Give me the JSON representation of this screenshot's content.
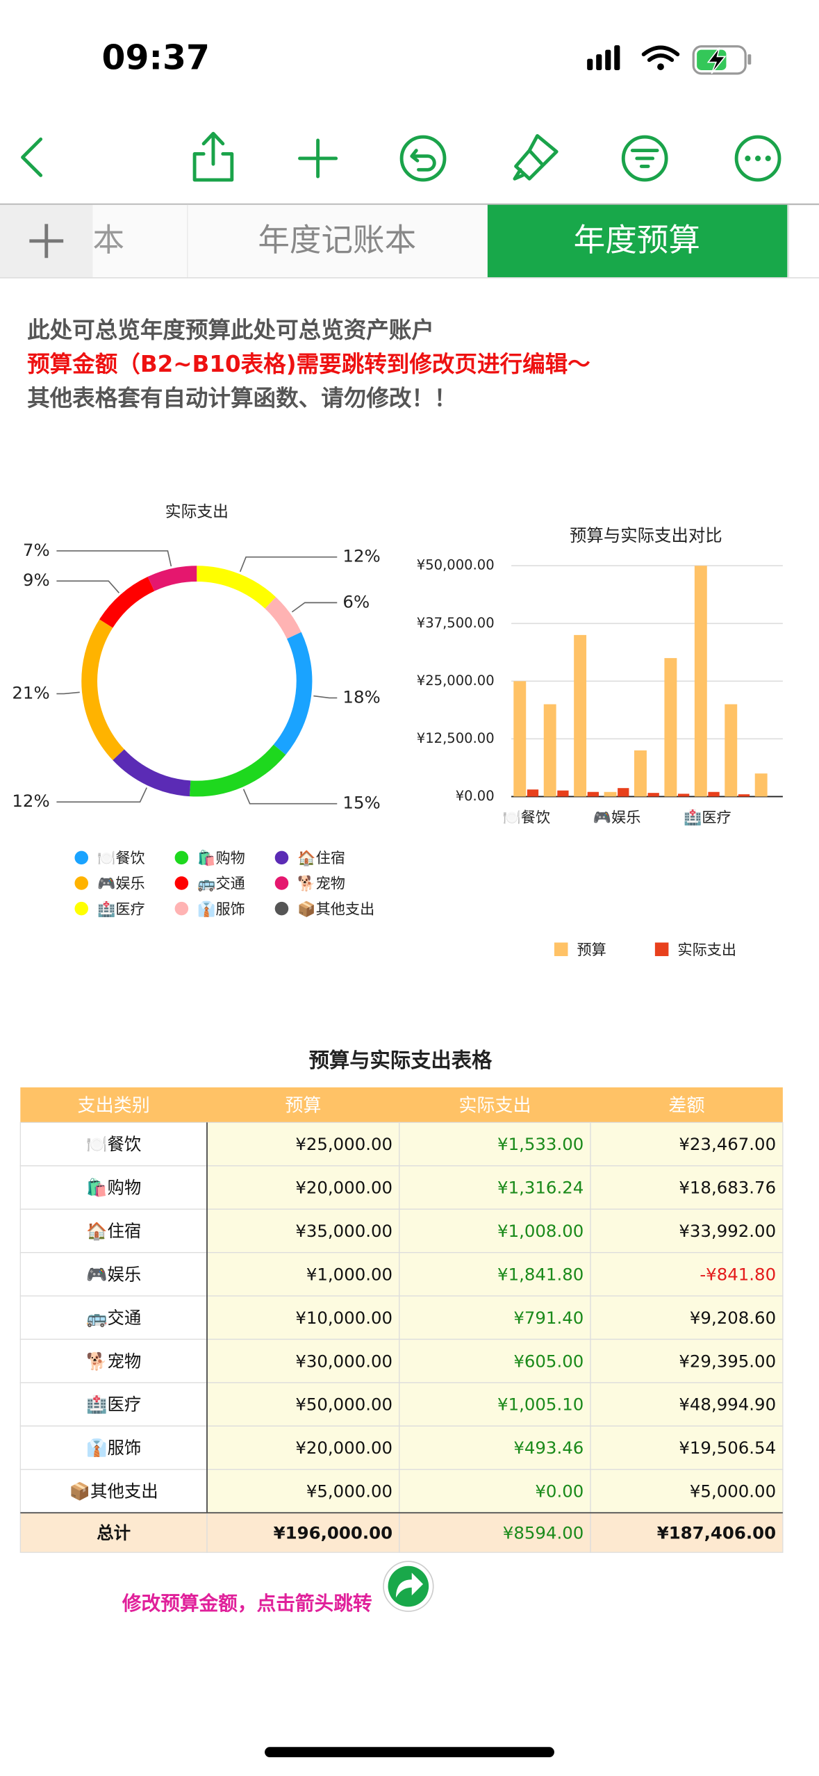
{
  "status_bar": {
    "time": "09:37"
  },
  "tabs": [
    "本",
    "年度记账本",
    "年度预算"
  ],
  "notes": [
    "此处可总览年度预算此处可总览资产账户",
    "预算金额（B2~B10表格)需要跳转到修改页进行编辑～",
    "其他表格套有自动计算函数、请勿修改！！"
  ],
  "chart_data": [
    {
      "type": "pie",
      "title": "实际支出",
      "categories": [
        "🍽️餐饮",
        "🛍️购物",
        "🏠住宿",
        "🎮娱乐",
        "🚌交通",
        "🐕宠物",
        "🏥医疗",
        "👔服饰",
        "📦其他支出"
      ],
      "values": [
        18,
        15,
        12,
        21,
        9,
        7,
        12,
        6,
        0
      ],
      "value_labels": [
        "18%",
        "15%",
        "12%",
        "21%",
        "9%",
        "7%",
        "12%",
        "6%",
        null
      ],
      "colors": [
        "#1aa3ff",
        "#1ed81e",
        "#5b2bb5",
        "#ffb300",
        "#ff0000",
        "#e5176e",
        "#ffff00",
        "#ffb3b3",
        "#555555"
      ]
    },
    {
      "type": "bar",
      "title": "预算与实际支出对比",
      "categories": [
        "🍽️餐饮",
        null,
        null,
        "🎮娱乐",
        null,
        null,
        "🏥医疗",
        null,
        null
      ],
      "series": [
        {
          "name": "预算",
          "color": "#ffc266",
          "values": [
            25000,
            20000,
            35000,
            1000,
            10000,
            30000,
            50000,
            20000,
            5000
          ]
        },
        {
          "name": "实际支出",
          "color": "#e8401c",
          "values": [
            1533,
            1316.24,
            1008,
            1841.8,
            791.4,
            605,
            1005.1,
            493.46,
            0
          ]
        }
      ],
      "ylim": [
        0,
        50000
      ],
      "yticks": [
        {
          "value": 0,
          "label": "¥0.00"
        },
        {
          "value": 12500,
          "label": "¥12,500.00"
        },
        {
          "value": 25000,
          "label": "¥25,000.00"
        },
        {
          "value": 37500,
          "label": "¥37,500.00"
        },
        {
          "value": 50000,
          "label": "¥50,000.00"
        }
      ],
      "grid": true
    }
  ],
  "table": {
    "title": "预算与实际支出表格",
    "header": [
      "支出类别",
      "预算",
      "实际支出",
      "差额"
    ],
    "rows": [
      [
        "🍽️餐饮",
        "¥25,000.00",
        "¥1,533.00",
        "¥23,467.00"
      ],
      [
        "🛍️购物",
        "¥20,000.00",
        "¥1,316.24",
        "¥18,683.76"
      ],
      [
        "🏠住宿",
        "¥35,000.00",
        "¥1,008.00",
        "¥33,992.00"
      ],
      [
        "🎮娱乐",
        "¥1,000.00",
        "¥1,841.80",
        "-¥841.80"
      ],
      [
        "🚌交通",
        "¥10,000.00",
        "¥791.40",
        "¥9,208.60"
      ],
      [
        "🐕宠物",
        "¥30,000.00",
        "¥605.00",
        "¥29,395.00"
      ],
      [
        "🏥医疗",
        "¥50,000.00",
        "¥1,005.10",
        "¥48,994.90"
      ],
      [
        "👔服饰",
        "¥20,000.00",
        "¥493.46",
        "¥19,506.54"
      ],
      [
        "📦其他支出",
        "¥5,000.00",
        "¥0.00",
        "¥5,000.00"
      ]
    ],
    "total": [
      "总计",
      "¥196,000.00",
      "¥8594.00",
      "¥187,406.00"
    ]
  },
  "footer_note": "修改预算金额，点击箭头跳转"
}
